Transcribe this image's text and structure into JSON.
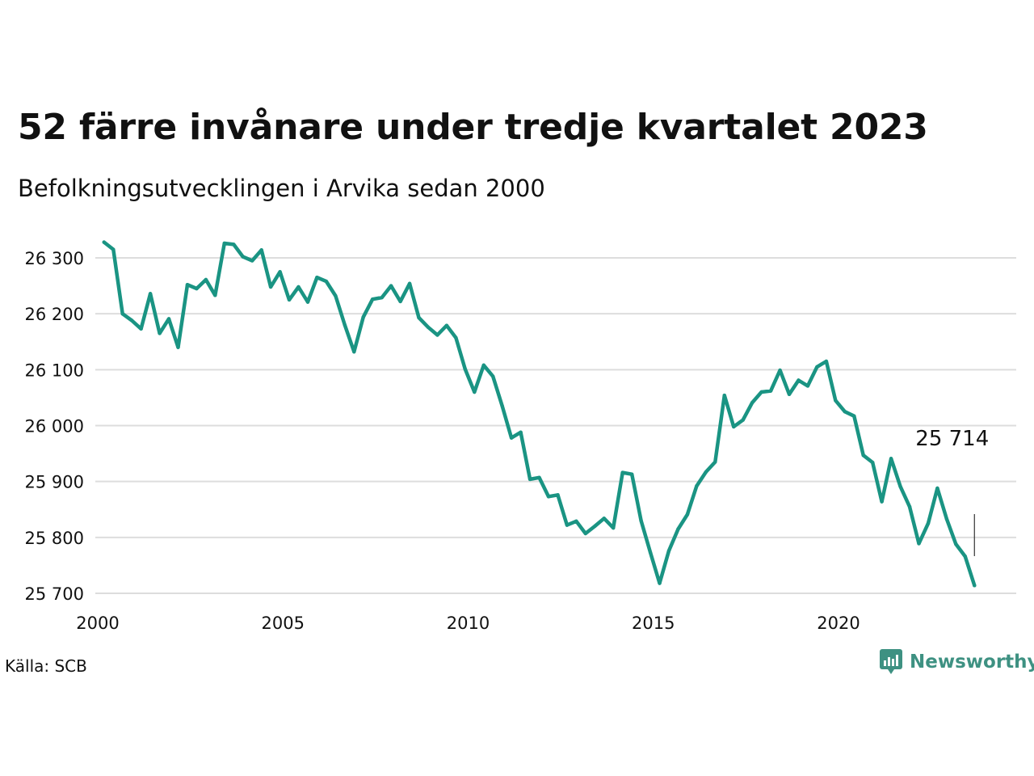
{
  "title": "52 färre invånare under tredje kvartalet 2023",
  "subtitle": "Befolkningsutvecklingen i Arvika sedan 2000",
  "source": "Källa: SCB",
  "brand": {
    "name": "Newsworthy",
    "icon": "newsworthy-logo-icon",
    "color": "#3e9182"
  },
  "colors": {
    "line": "#1a9483",
    "grid": "#dddddd",
    "text": "#111111"
  },
  "chart_data": {
    "type": "line",
    "title": "52 färre invånare under tredje kvartalet 2023",
    "subtitle": "Befolkningsutvecklingen i Arvika sedan 2000",
    "xlabel": "",
    "ylabel": "",
    "xlim": [
      2000,
      2024
    ],
    "ylim": [
      25700,
      26345
    ],
    "grid": true,
    "y_ticks": [
      25700,
      25800,
      25900,
      26000,
      26100,
      26200,
      26300
    ],
    "y_tick_labels": [
      "25 700",
      "25 800",
      "25 900",
      "26 000",
      "26 100",
      "26 200",
      "26 300"
    ],
    "x_ticks": [
      2000,
      2005,
      2010,
      2015,
      2020
    ],
    "x_tick_labels": [
      "2000",
      "2005",
      "2010",
      "2015",
      "2020"
    ],
    "end_label": "25 714",
    "series": [
      {
        "values": [
          [
            2000.17,
            26328
          ],
          [
            2000.42,
            26315
          ],
          [
            2000.67,
            26200
          ],
          [
            2000.92,
            26188
          ],
          [
            2001.17,
            26173
          ],
          [
            2001.42,
            26236
          ],
          [
            2001.67,
            26165
          ],
          [
            2001.92,
            26191
          ],
          [
            2002.17,
            26140
          ],
          [
            2002.42,
            26252
          ],
          [
            2002.67,
            26245
          ],
          [
            2002.92,
            26261
          ],
          [
            2003.17,
            26233
          ],
          [
            2003.42,
            26326
          ],
          [
            2003.67,
            26324
          ],
          [
            2003.92,
            26302
          ],
          [
            2004.17,
            26295
          ],
          [
            2004.42,
            26314
          ],
          [
            2004.67,
            26248
          ],
          [
            2004.92,
            26275
          ],
          [
            2005.17,
            26225
          ],
          [
            2005.42,
            26248
          ],
          [
            2005.67,
            26221
          ],
          [
            2005.92,
            26265
          ],
          [
            2006.17,
            26258
          ],
          [
            2006.42,
            26232
          ],
          [
            2006.67,
            26180
          ],
          [
            2006.92,
            26132
          ],
          [
            2007.17,
            26194
          ],
          [
            2007.42,
            26226
          ],
          [
            2007.67,
            26229
          ],
          [
            2007.92,
            26250
          ],
          [
            2008.17,
            26222
          ],
          [
            2008.42,
            26254
          ],
          [
            2008.67,
            26193
          ],
          [
            2008.92,
            26176
          ],
          [
            2009.17,
            26162
          ],
          [
            2009.42,
            26179
          ],
          [
            2009.67,
            26157
          ],
          [
            2009.92,
            26101
          ],
          [
            2010.17,
            26060
          ],
          [
            2010.42,
            26108
          ],
          [
            2010.67,
            26088
          ],
          [
            2010.92,
            26035
          ],
          [
            2011.17,
            25978
          ],
          [
            2011.42,
            25988
          ],
          [
            2011.67,
            25904
          ],
          [
            2011.92,
            25907
          ],
          [
            2012.17,
            25873
          ],
          [
            2012.42,
            25876
          ],
          [
            2012.67,
            25822
          ],
          [
            2012.92,
            25829
          ],
          [
            2013.17,
            25807
          ],
          [
            2013.42,
            25820
          ],
          [
            2013.67,
            25834
          ],
          [
            2013.92,
            25817
          ],
          [
            2014.17,
            25916
          ],
          [
            2014.42,
            25913
          ],
          [
            2014.67,
            25830
          ],
          [
            2014.92,
            25773
          ],
          [
            2015.17,
            25718
          ],
          [
            2015.42,
            25776
          ],
          [
            2015.67,
            25815
          ],
          [
            2015.92,
            25841
          ],
          [
            2016.17,
            25892
          ],
          [
            2016.42,
            25917
          ],
          [
            2016.67,
            25935
          ],
          [
            2016.92,
            26054
          ],
          [
            2017.17,
            25998
          ],
          [
            2017.42,
            26010
          ],
          [
            2017.67,
            26041
          ],
          [
            2017.92,
            26060
          ],
          [
            2018.17,
            26062
          ],
          [
            2018.42,
            26099
          ],
          [
            2018.67,
            26056
          ],
          [
            2018.92,
            26081
          ],
          [
            2019.17,
            26071
          ],
          [
            2019.42,
            26105
          ],
          [
            2019.67,
            26115
          ],
          [
            2019.92,
            26045
          ],
          [
            2020.17,
            26025
          ],
          [
            2020.42,
            26017
          ],
          [
            2020.67,
            25947
          ],
          [
            2020.92,
            25934
          ],
          [
            2021.17,
            25864
          ],
          [
            2021.42,
            25941
          ],
          [
            2021.67,
            25891
          ],
          [
            2021.92,
            25855
          ],
          [
            2022.17,
            25789
          ],
          [
            2022.42,
            25825
          ],
          [
            2022.67,
            25888
          ],
          [
            2022.92,
            25833
          ],
          [
            2023.17,
            25788
          ],
          [
            2023.42,
            25766
          ],
          [
            2023.67,
            25714
          ]
        ]
      }
    ]
  }
}
